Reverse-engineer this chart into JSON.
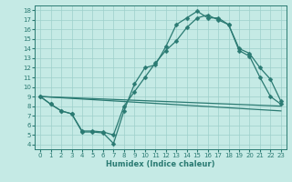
{
  "xlabel": "Humidex (Indice chaleur)",
  "xlim": [
    -0.5,
    23.5
  ],
  "ylim": [
    3.5,
    18.5
  ],
  "yticks": [
    4,
    5,
    6,
    7,
    8,
    9,
    10,
    11,
    12,
    13,
    14,
    15,
    16,
    17,
    18
  ],
  "xticks": [
    0,
    1,
    2,
    3,
    4,
    5,
    6,
    7,
    8,
    9,
    10,
    11,
    12,
    13,
    14,
    15,
    16,
    17,
    18,
    19,
    20,
    21,
    22,
    23
  ],
  "bg_color": "#c5eae5",
  "line_color": "#2a7a72",
  "grid_color": "#9dcfca",
  "series_marked_1": {
    "x": [
      0,
      1,
      2,
      3,
      4,
      5,
      6,
      7,
      8,
      9,
      10,
      11,
      12,
      13,
      14,
      15,
      16,
      17,
      18,
      19,
      20,
      21,
      22,
      23
    ],
    "y": [
      9.0,
      8.2,
      7.5,
      7.2,
      5.3,
      5.3,
      5.2,
      4.1,
      7.5,
      10.3,
      12.0,
      12.3,
      14.2,
      16.5,
      17.2,
      17.9,
      17.2,
      17.2,
      16.5,
      13.8,
      13.2,
      11.0,
      9.0,
      8.2
    ]
  },
  "series_marked_2": {
    "x": [
      0,
      1,
      2,
      3,
      4,
      5,
      6,
      7,
      8,
      9,
      10,
      11,
      12,
      13,
      14,
      15,
      16,
      17,
      18,
      19,
      20,
      21,
      22,
      23
    ],
    "y": [
      9.0,
      8.2,
      7.5,
      7.2,
      5.4,
      5.4,
      5.3,
      5.0,
      8.0,
      9.5,
      11.0,
      12.5,
      13.8,
      14.8,
      16.2,
      17.2,
      17.5,
      17.0,
      16.5,
      14.0,
      13.5,
      12.0,
      10.8,
      8.5
    ]
  },
  "series_line_1": {
    "x": [
      0,
      23
    ],
    "y": [
      9.0,
      8.0
    ]
  },
  "series_line_2": {
    "x": [
      0,
      23
    ],
    "y": [
      9.0,
      7.5
    ]
  }
}
